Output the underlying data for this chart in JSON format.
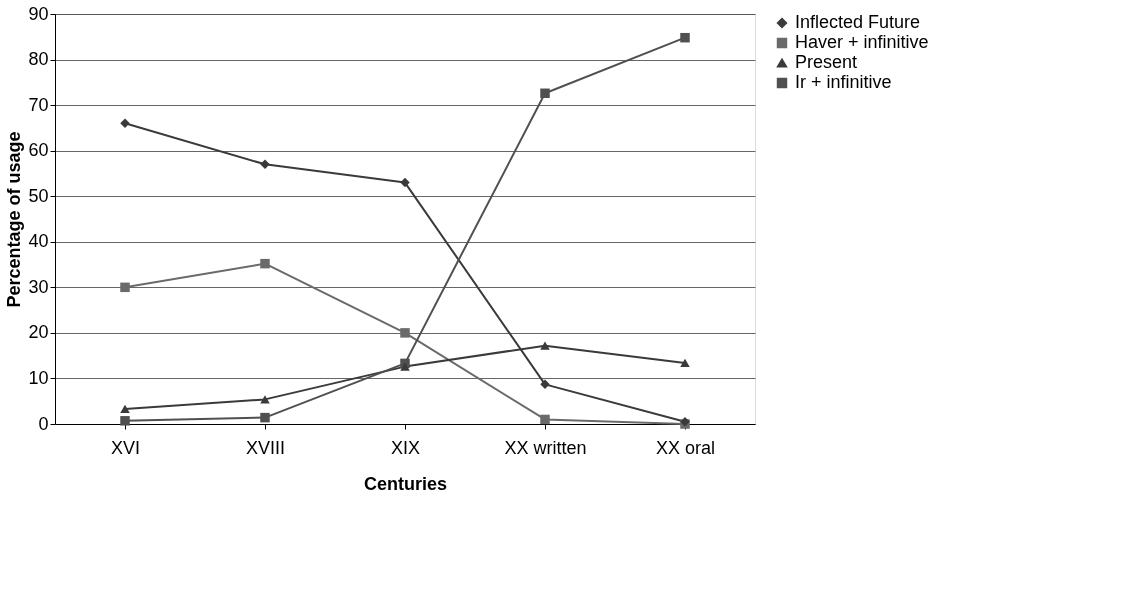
{
  "chart_data": {
    "type": "line",
    "xlabel": "Centuries",
    "ylabel": "Percentage of usage",
    "categories": [
      "XVI",
      "XVIII",
      "XIX",
      "XX written",
      "XX oral"
    ],
    "series": [
      {
        "name": "Inflected Future",
        "color": "#3a3a3a",
        "marker": "diamond",
        "values": [
          66,
          57,
          53,
          8.7,
          0.5
        ]
      },
      {
        "name": "Haver + infinitive",
        "color": "#6a6a6a",
        "marker": "square",
        "values": [
          30,
          35.2,
          20,
          1,
          0
        ]
      },
      {
        "name": "Present",
        "color": "#3a3a3a",
        "marker": "triangle",
        "values": [
          3.3,
          5.4,
          12.6,
          17.2,
          13.4
        ]
      },
      {
        "name": "Ir + infinitive",
        "color": "#505050",
        "marker": "square",
        "values": [
          0.7,
          1.4,
          13.3,
          72.6,
          84.8
        ]
      }
    ],
    "ylim": [
      0,
      90
    ],
    "yticks": [
      0,
      10,
      20,
      30,
      40,
      50,
      60,
      70,
      80,
      90
    ],
    "grid": "y",
    "legend": "right",
    "line_style": "solid"
  }
}
